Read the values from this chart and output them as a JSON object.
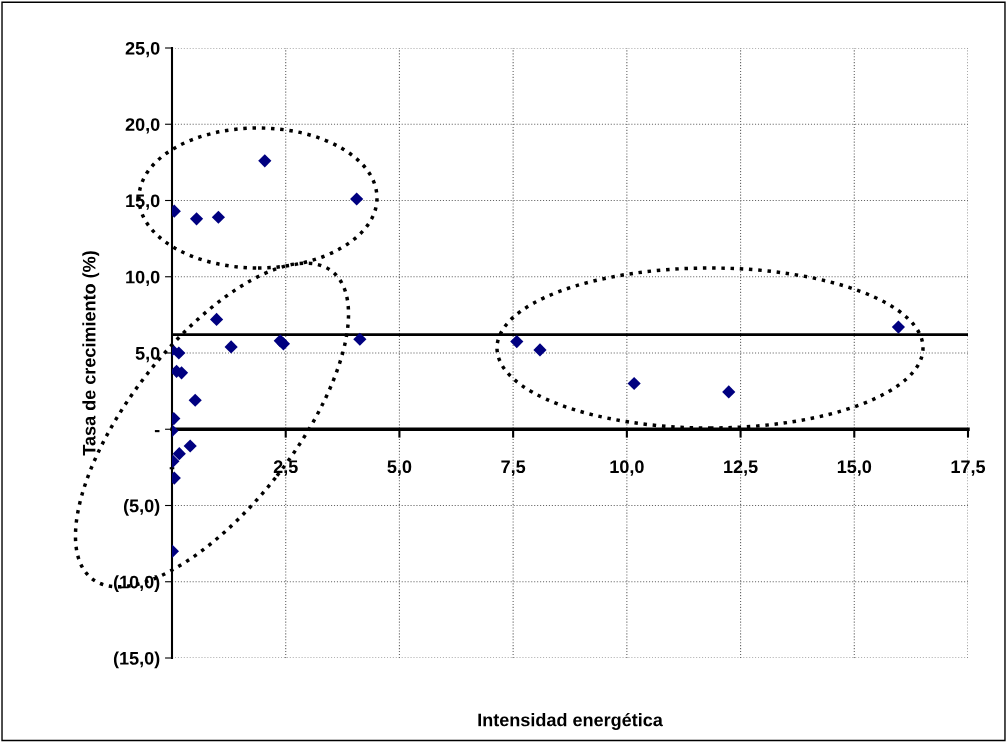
{
  "chart_data": {
    "type": "scatter",
    "xlabel": "Intensidad energética",
    "ylabel": "Tasa de crecimiento (%)",
    "series": [
      {
        "color": "#000080",
        "x": [
          0.05,
          0.54,
          1.02,
          2.04,
          4.06,
          0.98,
          0.0,
          0.15,
          1.3,
          2.38,
          2.45,
          4.13,
          0.1,
          0.21,
          0.51,
          0.04,
          0.0,
          0.4,
          0.16,
          0.02,
          0.05,
          0.01,
          7.58,
          8.09,
          10.16,
          12.24,
          15.97
        ],
        "values": [
          14.3,
          13.8,
          13.9,
          17.6,
          15.1,
          7.2,
          5.2,
          5.0,
          5.4,
          5.8,
          5.6,
          5.9,
          3.8,
          3.7,
          1.9,
          0.7,
          -0.1,
          -1.1,
          -1.6,
          -2.1,
          -3.2,
          -8.0,
          5.75,
          5.2,
          3.0,
          2.45,
          6.7
        ]
      }
    ],
    "marker": "diamond",
    "grid": true,
    "xlim": [
      0,
      17.5
    ],
    "xticks": [
      {
        "value": 0,
        "label": "-"
      },
      {
        "value": 2.5,
        "label": "2,5"
      },
      {
        "value": 5,
        "label": "5,0"
      },
      {
        "value": 7.5,
        "label": "7,5"
      },
      {
        "value": 10,
        "label": "10,0"
      },
      {
        "value": 12.5,
        "label": "12,5"
      },
      {
        "value": 15,
        "label": "15,0"
      },
      {
        "value": 17.5,
        "label": "17,5"
      }
    ],
    "ylim": [
      -15,
      25
    ],
    "yticks": [
      {
        "value": -15,
        "label": "(15,0)"
      },
      {
        "value": -10,
        "label": "(10,0)"
      },
      {
        "value": -5,
        "label": "(5,0)"
      },
      {
        "value": 0,
        "label": "-"
      },
      {
        "value": 5,
        "label": "5,0"
      },
      {
        "value": 10,
        "label": "10,0"
      },
      {
        "value": 15,
        "label": "15,0"
      },
      {
        "value": 20,
        "label": "20,0"
      },
      {
        "value": 25,
        "label": "25,0"
      }
    ],
    "ref_lines": [
      {
        "axis": "y",
        "value": 6.2,
        "color": "#000000",
        "line_style": "solid"
      }
    ]
  }
}
